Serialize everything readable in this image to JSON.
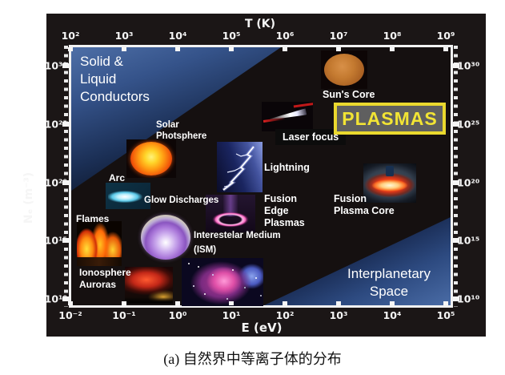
{
  "figure": {
    "caption": "(a) 自然界中等离子体的分布"
  },
  "axes": {
    "top": {
      "title": "T (K)",
      "ticks": [
        "10²",
        "10³",
        "10⁴",
        "10⁵",
        "10⁶",
        "10⁷",
        "10⁸",
        "10⁹"
      ]
    },
    "bottom": {
      "title": "E (eV)",
      "ticks": [
        "10⁻²",
        "10⁻¹",
        "10⁰",
        "10¹",
        "10²",
        "10³",
        "10⁴",
        "10⁵"
      ]
    },
    "left": {
      "title": "Nₑ (m⁻³)",
      "ticks": [
        "10³⁰",
        "10²⁵",
        "10²⁰",
        "10¹⁵",
        "10¹⁰"
      ]
    },
    "right": {
      "ticks": [
        "10³⁰",
        "10²⁵",
        "10²⁰",
        "10¹⁵",
        "10¹⁰"
      ]
    }
  },
  "regions": {
    "solid_conductors": "Solid &\nLiquid\nConductors",
    "interplanetary": "Interplanetary\nSpace",
    "plasmas_badge": "PLASMAS"
  },
  "items": {
    "solar_photosphere": {
      "label": "Solar\nPhotsphere"
    },
    "arc": {
      "label": "Arc"
    },
    "glow_discharges": {
      "label": "Glow Discharges"
    },
    "flames": {
      "label": "Flames"
    },
    "ionosphere": {
      "label": "Ionosphere\nAuroras"
    },
    "ism": {
      "label": "Interestelar Medium\n(ISM)"
    },
    "fusion_edge": {
      "label": "Fusion\nEdge\nPlasmas"
    },
    "lightning": {
      "label": "Lightning"
    },
    "laser_focus": {
      "label": "Laser focus"
    },
    "suns_core": {
      "label": "Sun's Core"
    },
    "fusion_core": {
      "label": "Fusion\nPlasma Core"
    }
  },
  "colors": {
    "plasmas_accent": "#ead82e",
    "plasmas_fill": "#5f5f5f",
    "region_blue": "#4a6ca6",
    "plot_background": "#151010",
    "text": "#ffffff"
  },
  "chart_data": {
    "type": "scatter",
    "title": "(a) 自然界中等离子体的分布",
    "xlabel": "E (eV)",
    "ylabel": "Nₑ (m⁻³)",
    "x2label": "T (K)",
    "xscale": "log",
    "yscale": "log",
    "xlim": [
      0.01,
      100000
    ],
    "x2lim": [
      100,
      1000000000
    ],
    "ylim": [
      10000000000.0,
      1e+30
    ],
    "x_ticks": [
      "10⁻²",
      "10⁻¹",
      "10⁰",
      "10¹",
      "10²",
      "10³",
      "10⁴",
      "10⁵"
    ],
    "x2_ticks": [
      "10²",
      "10³",
      "10⁴",
      "10⁵",
      "10⁶",
      "10⁷",
      "10⁸",
      "10⁹"
    ],
    "y_ticks": [
      "10³⁰",
      "10²⁵",
      "10²⁰",
      "10¹⁵",
      "10¹⁰"
    ],
    "grid": false,
    "points": [
      {
        "name": "Flames",
        "E_eV": 0.03,
        "Ne_m3": 1000000000000000.0
      },
      {
        "name": "Ionosphere Auroras",
        "E_eV": 0.3,
        "Ne_m3": 100000000000.0
      },
      {
        "name": "Arc",
        "E_eV": 0.1,
        "Ne_m3": 8e+18
      },
      {
        "name": "Glow Discharges",
        "E_eV": 0.6,
        "Ne_m3": 2000000000000000.0
      },
      {
        "name": "Solar Photsphere",
        "E_eV": 0.33,
        "Ne_m3": 1e+22
      },
      {
        "name": "Interestelar Medium (ISM)",
        "E_eV": 8,
        "Ne_m3": 300000000000.0
      },
      {
        "name": "Lightning",
        "E_eV": 15,
        "Ne_m3": 2e+21
      },
      {
        "name": "Fusion Edge Plasmas",
        "E_eV": 10,
        "Ne_m3": 3e+17
      },
      {
        "name": "Laser focus",
        "E_eV": 120,
        "Ne_m3": 4e+25
      },
      {
        "name": "Sun's Core",
        "E_eV": 1300,
        "Ne_m3": 5e+29
      },
      {
        "name": "Fusion Plasma Core",
        "E_eV": 10000,
        "Ne_m3": 1e+20
      }
    ],
    "regions": [
      {
        "name": "Solid & Liquid Conductors",
        "position": "upper-left triangle"
      },
      {
        "name": "PLASMAS",
        "position": "upper-right highlighted label"
      },
      {
        "name": "Interplanetary Space",
        "position": "lower-right triangle"
      }
    ]
  }
}
